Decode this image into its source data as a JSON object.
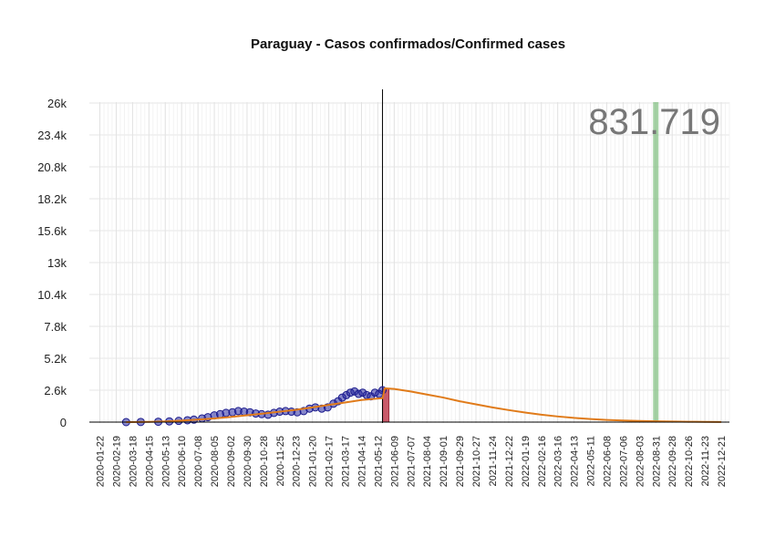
{
  "chart_data": {
    "type": "line",
    "title": "Paraguay - Casos confirmados/Confirmed cases",
    "xlabel": "",
    "ylabel": "",
    "total_label": "831.719",
    "ylim": [
      -1300,
      27000
    ],
    "y_ticks": [
      0,
      2600,
      5200,
      7800,
      10400,
      13000,
      15600,
      18200,
      20800,
      23400,
      26000
    ],
    "y_tick_labels": [
      "0",
      "2.6k",
      "5.2k",
      "7.8k",
      "10.4k",
      "13k",
      "15.6k",
      "18.2k",
      "20.8k",
      "23.4k",
      "26k"
    ],
    "x_tick_labels": [
      "2020-01-22",
      "2020-02-19",
      "2020-03-18",
      "2020-04-15",
      "2020-05-13",
      "2020-06-10",
      "2020-07-08",
      "2020-08-05",
      "2020-09-02",
      "2020-09-30",
      "2020-10-28",
      "2020-11-25",
      "2020-12-23",
      "2021-01-20",
      "2021-02-17",
      "2021-03-17",
      "2021-04-14",
      "2021-05-12",
      "2021-06-09",
      "2021-07-07",
      "2021-08-04",
      "2021-09-01",
      "2021-09-29",
      "2021-10-27",
      "2021-11-24",
      "2021-12-22",
      "2022-01-19",
      "2022-02-16",
      "2022-03-16",
      "2022-04-13",
      "2022-05-11",
      "2022-06-08",
      "2022-07-06",
      "2022-08-03",
      "2022-08-31",
      "2022-09-28",
      "2022-10-26",
      "2022-11-23",
      "2022-12-21"
    ],
    "grid": true,
    "today_line": "2021-05-20",
    "green_marker": "2022-08-31",
    "series": [
      {
        "name": "",
        "kind": "points",
        "color": "#1a1a8c",
        "x": [
          "2020-03-07",
          "2020-04-01",
          "2020-05-01",
          "2020-05-20",
          "2020-06-05",
          "2020-06-20",
          "2020-07-01",
          "2020-07-15",
          "2020-07-25",
          "2020-08-05",
          "2020-08-15",
          "2020-08-25",
          "2020-09-05",
          "2020-09-15",
          "2020-09-25",
          "2020-10-05",
          "2020-10-15",
          "2020-10-25",
          "2020-11-05",
          "2020-11-15",
          "2020-11-25",
          "2020-12-05",
          "2020-12-15",
          "2020-12-25",
          "2021-01-05",
          "2021-01-15",
          "2021-01-25",
          "2021-02-05",
          "2021-02-15",
          "2021-02-25",
          "2021-03-05",
          "2021-03-12",
          "2021-03-19",
          "2021-03-26",
          "2021-04-02",
          "2021-04-09",
          "2021-04-16",
          "2021-04-23",
          "2021-04-30",
          "2021-05-07",
          "2021-05-14",
          "2021-05-20"
        ],
        "values": [
          0,
          10,
          30,
          60,
          100,
          150,
          200,
          300,
          400,
          550,
          650,
          750,
          800,
          900,
          850,
          800,
          700,
          650,
          600,
          750,
          850,
          900,
          850,
          800,
          900,
          1100,
          1200,
          1100,
          1200,
          1500,
          1700,
          2000,
          2200,
          2400,
          2500,
          2300,
          2400,
          2200,
          2100,
          2400,
          2300,
          2600
        ]
      },
      {
        "name": "",
        "kind": "line",
        "color": "#e07b1a",
        "x": [
          "2020-03-07",
          "2020-04-15",
          "2020-05-13",
          "2020-06-10",
          "2020-07-08",
          "2020-08-05",
          "2020-09-02",
          "2020-09-30",
          "2020-10-28",
          "2020-11-25",
          "2020-12-23",
          "2021-01-20",
          "2021-02-17",
          "2021-03-17",
          "2021-04-14",
          "2021-05-20",
          "2021-05-24",
          "2021-06-09",
          "2021-07-07",
          "2021-08-04",
          "2021-09-01",
          "2021-09-29",
          "2021-10-27",
          "2021-11-24",
          "2021-12-22",
          "2022-01-19",
          "2022-02-16",
          "2022-03-16",
          "2022-04-13",
          "2022-05-11",
          "2022-06-08",
          "2022-07-06",
          "2022-08-03",
          "2022-08-31",
          "2022-09-28",
          "2022-10-26",
          "2022-11-23",
          "2022-12-21"
        ],
        "values": [
          0,
          20,
          60,
          120,
          200,
          300,
          420,
          560,
          700,
          850,
          1000,
          1200,
          1400,
          1600,
          1800,
          1950,
          2750,
          2700,
          2500,
          2250,
          2000,
          1700,
          1450,
          1200,
          980,
          780,
          600,
          460,
          340,
          250,
          180,
          130,
          95,
          65,
          45,
          30,
          20,
          10
        ]
      }
    ]
  }
}
